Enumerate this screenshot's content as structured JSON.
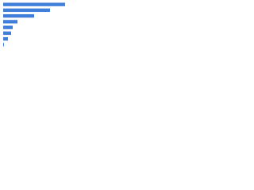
{
  "chart_data": {
    "type": "bar",
    "orientation": "horizontal",
    "categories": [
      null,
      null,
      null,
      null,
      null,
      null,
      null,
      null
    ],
    "values": [
      78,
      59,
      39,
      18,
      12,
      10,
      6,
      1
    ],
    "color": "#3f7fd9",
    "xlim": [
      0,
      80
    ],
    "grid": false
  }
}
